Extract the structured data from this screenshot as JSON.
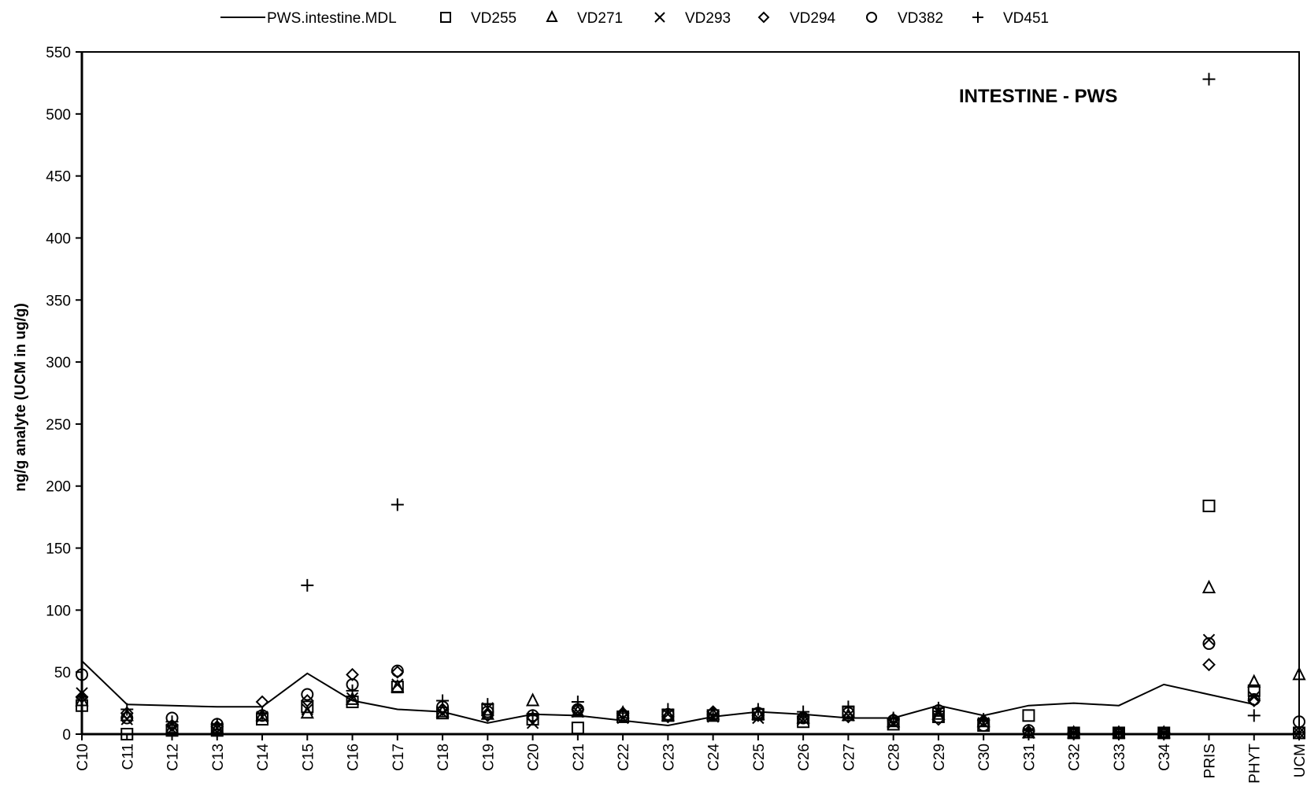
{
  "chart_data": {
    "type": "scatter",
    "title": "INTESTINE - PWS",
    "xlabel": "",
    "ylabel": "ng/g analyte (UCM in ug/g)",
    "ylim": [
      0,
      550
    ],
    "yticks": [
      0,
      50,
      100,
      150,
      200,
      250,
      300,
      350,
      400,
      450,
      500,
      550
    ],
    "grid": false,
    "legend_position": "top",
    "categories": [
      "C10",
      "C11",
      "C12",
      "C13",
      "C14",
      "C15",
      "C16",
      "C17",
      "C18",
      "C19",
      "C20",
      "C21",
      "C22",
      "C23",
      "C24",
      "C25",
      "C26",
      "C27",
      "C28",
      "C29",
      "C30",
      "C31",
      "C32",
      "C33",
      "C34",
      "PRIS",
      "PHYT",
      "UCM"
    ],
    "series": [
      {
        "name": "PWS.intestine.MDL",
        "marker": "line",
        "values": [
          59,
          24,
          23,
          22,
          22,
          49,
          27,
          20,
          18,
          9,
          16,
          15,
          11,
          7,
          14,
          18,
          16,
          13,
          13,
          23,
          15,
          23,
          25,
          23,
          40,
          32,
          24,
          null
        ]
      },
      {
        "name": "VD255",
        "marker": "square",
        "values": [
          23,
          0,
          3,
          3,
          12,
          22,
          26,
          38,
          17,
          20,
          12,
          5,
          14,
          15,
          15,
          16,
          10,
          18,
          8,
          14,
          7,
          15,
          1,
          1,
          1,
          184,
          35,
          1
        ]
      },
      {
        "name": "VD271",
        "marker": "triangle",
        "values": [
          27,
          15,
          5,
          5,
          15,
          17,
          28,
          38,
          18,
          16,
          27,
          18,
          17,
          15,
          16,
          16,
          13,
          15,
          10,
          16,
          10,
          1,
          1,
          1,
          1,
          118,
          42,
          48
        ]
      },
      {
        "name": "VD293",
        "marker": "x",
        "values": [
          33,
          12,
          4,
          5,
          14,
          20,
          29,
          40,
          17,
          21,
          9,
          18,
          13,
          16,
          14,
          13,
          12,
          15,
          9,
          18,
          9,
          1,
          1,
          1,
          1,
          76,
          30,
          1
        ]
      },
      {
        "name": "VD294",
        "marker": "diamond",
        "values": [
          30,
          17,
          7,
          6,
          26,
          27,
          48,
          50,
          20,
          15,
          13,
          20,
          17,
          14,
          18,
          15,
          14,
          14,
          12,
          12,
          11,
          2,
          1,
          1,
          1,
          56,
          27,
          1
        ]
      },
      {
        "name": "VD382",
        "marker": "circle",
        "values": [
          48,
          13,
          13,
          8,
          15,
          32,
          40,
          51,
          22,
          18,
          15,
          20,
          15,
          16,
          16,
          17,
          13,
          17,
          11,
          19,
          7,
          3,
          1,
          1,
          1,
          73,
          28,
          10
        ]
      },
      {
        "name": "VD451",
        "marker": "plus",
        "values": [
          30,
          20,
          10,
          8,
          17,
          120,
          35,
          185,
          27,
          24,
          15,
          26,
          17,
          20,
          16,
          20,
          18,
          22,
          13,
          21,
          12,
          3,
          1,
          1,
          1,
          528,
          15,
          1
        ]
      }
    ]
  }
}
